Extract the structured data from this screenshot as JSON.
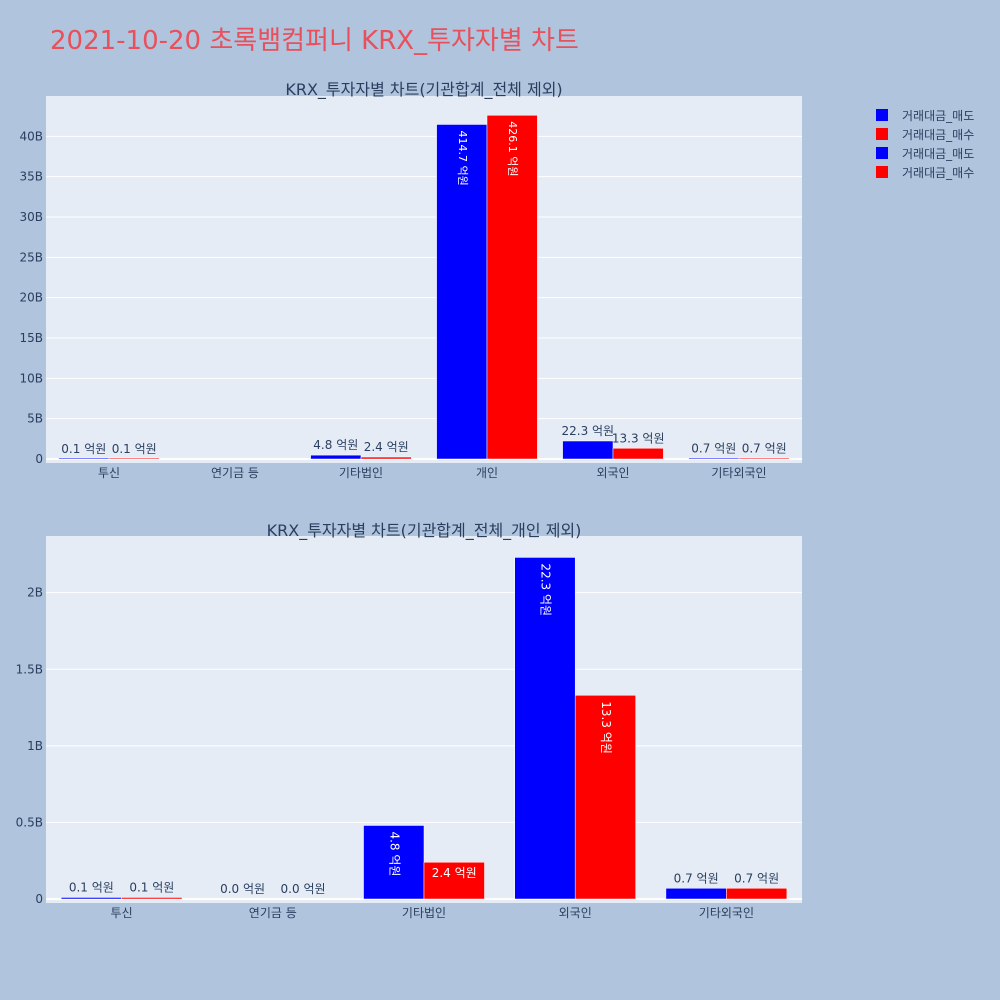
{
  "page_title": "2021-10-20 초록뱀컴퍼니 KRX_투자자별 차트",
  "colors": {
    "background": "#b0c4de",
    "plot_bg": "#e5ecf6",
    "sell": "#0000ff",
    "buy": "#ff0000",
    "title": "#e8505b",
    "text": "#2a3f5f"
  },
  "legend": {
    "placement": "top-right",
    "items": [
      {
        "label": "거래대금_매도",
        "color": "#0000ff"
      },
      {
        "label": "거래대금_매수",
        "color": "#ff0000"
      },
      {
        "label": "거래대금_매도",
        "color": "#0000ff"
      },
      {
        "label": "거래대금_매수",
        "color": "#ff0000"
      }
    ]
  },
  "chart_data": [
    {
      "type": "bar",
      "title": "KRX_투자자별 차트(기관합계_전체 제외)",
      "categories": [
        "투신",
        "연기금 등",
        "기타법인",
        "개인",
        "외국인",
        "기타외국인"
      ],
      "ylim": [
        0,
        45000000000
      ],
      "yticks": [
        0,
        5000000000,
        10000000000,
        15000000000,
        20000000000,
        25000000000,
        30000000000,
        35000000000,
        40000000000
      ],
      "ytick_labels": [
        "0",
        "5B",
        "10B",
        "15B",
        "20B",
        "25B",
        "30B",
        "35B",
        "40B"
      ],
      "grid": true,
      "series": [
        {
          "name": "거래대금_매도",
          "color": "#0000ff",
          "values": [
            10000000,
            0,
            480000000,
            41470000000,
            2230000000,
            70000000
          ],
          "labels": [
            "0.1 억원",
            "",
            "4.8 억원",
            "414.7 억원",
            "22.3 억원",
            "0.7 억원"
          ]
        },
        {
          "name": "거래대금_매수",
          "color": "#ff0000",
          "values": [
            10000000,
            0,
            240000000,
            42610000000,
            1330000000,
            70000000
          ],
          "labels": [
            "0.1 억원",
            "",
            "2.4 억원",
            "426.1 억원",
            "13.3 억원",
            "0.7 억원"
          ]
        }
      ]
    },
    {
      "type": "bar",
      "title": "KRX_투자자별 차트(기관합계_전체_개인 제외)",
      "categories": [
        "투신",
        "연기금 등",
        "기타법인",
        "외국인",
        "기타외국인"
      ],
      "ylim": [
        0,
        2370000000
      ],
      "yticks": [
        0,
        500000000,
        1000000000,
        1500000000,
        2000000000
      ],
      "ytick_labels": [
        "0",
        "0.5B",
        "1B",
        "1.5B",
        "2B"
      ],
      "grid": true,
      "series": [
        {
          "name": "거래대금_매도",
          "color": "#0000ff",
          "values": [
            10000000,
            0,
            480000000,
            2230000000,
            70000000
          ],
          "labels": [
            "0.1 억원",
            "0.0 억원",
            "4.8 억원",
            "22.3 억원",
            "0.7 억원"
          ]
        },
        {
          "name": "거래대금_매수",
          "color": "#ff0000",
          "values": [
            10000000,
            0,
            240000000,
            1330000000,
            70000000
          ],
          "labels": [
            "0.1 억원",
            "0.0 억원",
            "2.4 억원",
            "13.3 억원",
            "0.7 억원"
          ]
        }
      ]
    }
  ]
}
